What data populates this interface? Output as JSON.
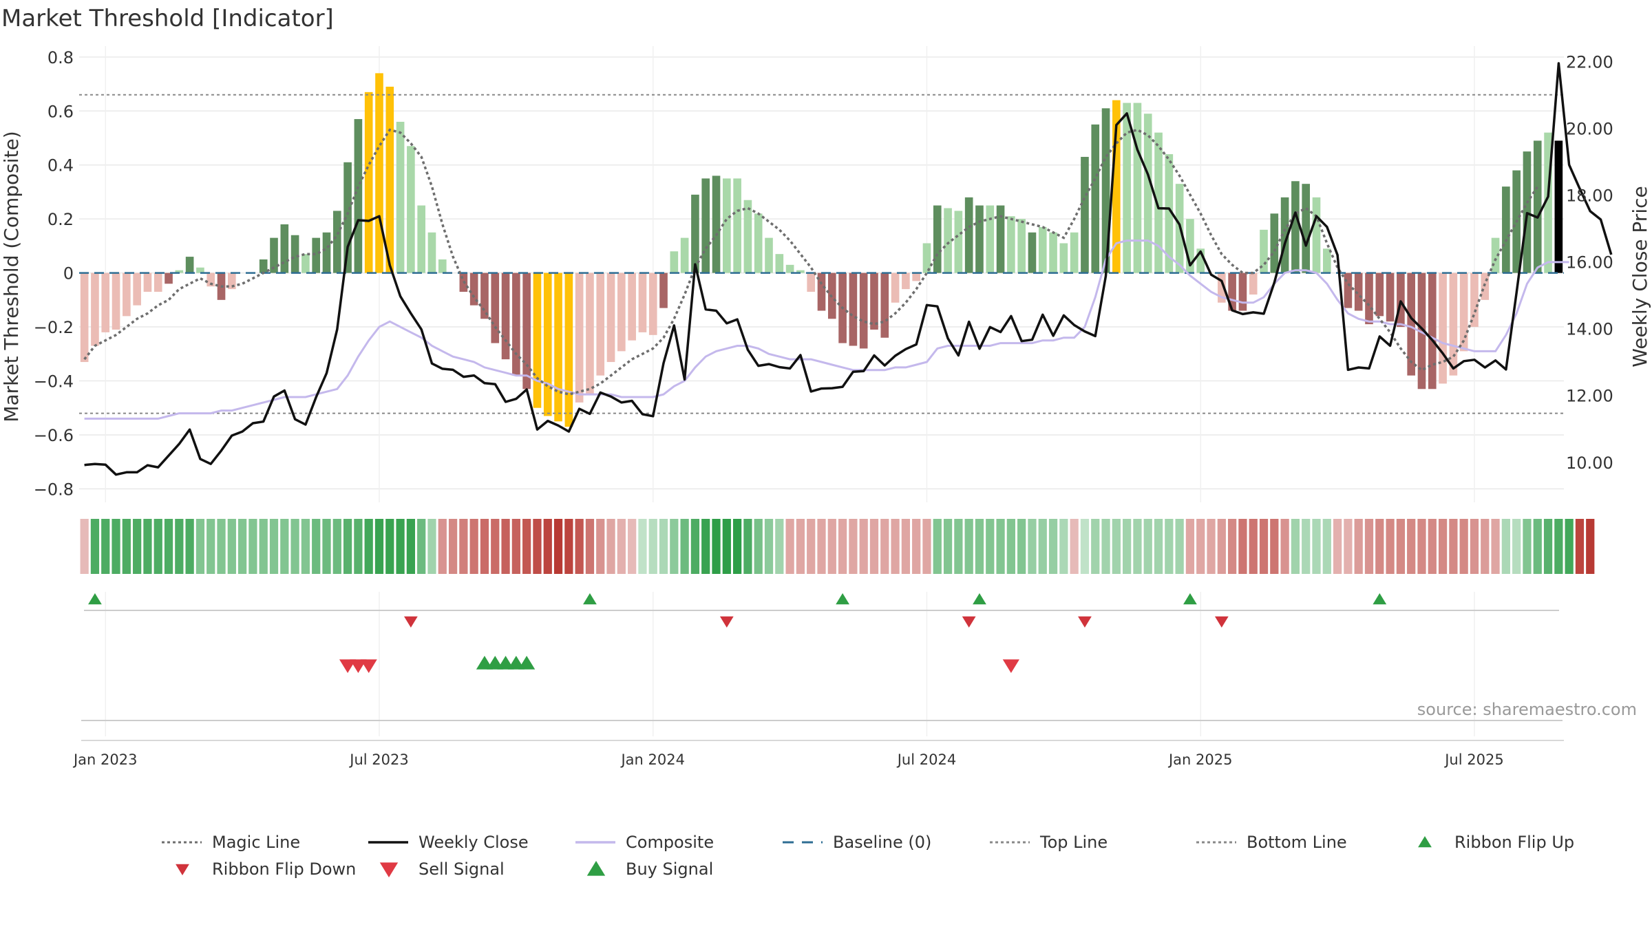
{
  "title": "Market Threshold [Indicator]",
  "source": "source: sharemaestro.com",
  "colors": {
    "grid": "#e9e9e9",
    "dark_green": "#5e8e5e",
    "light_green": "#a9d8a9",
    "dark_red": "#a86565",
    "light_red": "#ebbcb5",
    "gold": "#ffc107",
    "weekly_close": "#111111",
    "composite": "#c4b8ec",
    "magic_line": "#6e6e6e",
    "baseline": "#2e6d93",
    "ref_line": "#888888",
    "flip_up": "#2f9e44",
    "flip_down": "#d0333b",
    "sell": "#e03a44",
    "buy": "#2f9e44"
  },
  "chart_data": {
    "type": "bar",
    "title": "Market Threshold [Indicator]",
    "ylabel": "Market Threshold (Composite)",
    "y2label": "Weekly Close Price",
    "ylim": [
      -0.85,
      0.82
    ],
    "y2lim": [
      8.8,
      22.3
    ],
    "yticks": [
      "0.8",
      "0.6",
      "0.4",
      "0.2",
      "0",
      "−0.2",
      "−0.4",
      "−0.6",
      "−0.8"
    ],
    "ytick_values": [
      0.8,
      0.6,
      0.4,
      0.2,
      0,
      -0.2,
      -0.4,
      -0.6,
      -0.8
    ],
    "y2ticks": [
      "22.00",
      "20.00",
      "18.00",
      "16.00",
      "14.00",
      "12.00",
      "10.00"
    ],
    "y2tick_values": [
      22,
      20,
      18,
      16,
      14,
      12,
      10
    ],
    "xticks": [
      "Jan 2023",
      "Jul 2023",
      "Jan 2024",
      "Jul 2024",
      "Jan 2025",
      "Jul 2025"
    ],
    "xtick_weeks": [
      2,
      28,
      54,
      80,
      106,
      132
    ],
    "top_line": 0.66,
    "bottom_line": -0.52,
    "baseline": 0,
    "bars": [
      -0.33,
      -0.27,
      -0.22,
      -0.21,
      -0.16,
      -0.12,
      -0.07,
      -0.07,
      -0.04,
      0.01,
      0.06,
      0.02,
      -0.05,
      -0.1,
      -0.06,
      0.0,
      0.0,
      0.05,
      0.13,
      0.18,
      0.14,
      0.07,
      0.13,
      0.15,
      0.23,
      0.41,
      0.57,
      0.67,
      0.74,
      0.69,
      0.56,
      0.47,
      0.25,
      0.15,
      0.05,
      0.0,
      -0.07,
      -0.12,
      -0.17,
      -0.26,
      -0.32,
      -0.38,
      -0.43,
      -0.5,
      -0.53,
      -0.55,
      -0.57,
      -0.48,
      -0.45,
      -0.38,
      -0.33,
      -0.29,
      -0.25,
      -0.22,
      -0.23,
      -0.13,
      0.08,
      0.13,
      0.29,
      0.35,
      0.36,
      0.35,
      0.35,
      0.27,
      0.22,
      0.13,
      0.07,
      0.03,
      0.01,
      -0.07,
      -0.14,
      -0.17,
      -0.26,
      -0.27,
      -0.28,
      -0.21,
      -0.24,
      -0.11,
      -0.06,
      -0.03,
      0.11,
      0.25,
      0.24,
      0.23,
      0.28,
      0.25,
      0.25,
      0.25,
      0.21,
      0.2,
      0.15,
      0.17,
      0.15,
      0.11,
      0.15,
      0.43,
      0.55,
      0.61,
      0.64,
      0.63,
      0.63,
      0.59,
      0.52,
      0.44,
      0.33,
      0.2,
      0.09,
      0.0,
      -0.11,
      -0.14,
      -0.14,
      -0.08,
      0.16,
      0.22,
      0.28,
      0.34,
      0.33,
      0.28,
      0.09,
      0.0,
      -0.13,
      -0.14,
      -0.19,
      -0.16,
      -0.18,
      -0.2,
      -0.38,
      -0.43,
      -0.43,
      -0.41,
      -0.38,
      -0.29,
      -0.2,
      -0.1,
      0.13,
      0.32,
      0.38,
      0.45,
      0.49,
      0.52,
      0.49
    ],
    "bar_styles": [
      "lr",
      "lr",
      "lr",
      "lr",
      "lr",
      "lr",
      "lr",
      "lr",
      "dr",
      "lg",
      "dg",
      "lg",
      "lr",
      "dr",
      "lr",
      "lg",
      "lg",
      "dg",
      "dg",
      "dg",
      "dg",
      "lg",
      "dg",
      "dg",
      "dg",
      "dg",
      "dg",
      "go",
      "go",
      "go",
      "lg",
      "lg",
      "lg",
      "lg",
      "lg",
      "lr",
      "dr",
      "dr",
      "dr",
      "dr",
      "dr",
      "dr",
      "dr",
      "go",
      "go",
      "go",
      "go",
      "lr",
      "lr",
      "lr",
      "lr",
      "lr",
      "lr",
      "lr",
      "lr",
      "dr",
      "lg",
      "lg",
      "dg",
      "dg",
      "dg",
      "lg",
      "lg",
      "lg",
      "lg",
      "lg",
      "lg",
      "lg",
      "lg",
      "lr",
      "dr",
      "dr",
      "dr",
      "dr",
      "dr",
      "dr",
      "dr",
      "lr",
      "lr",
      "lr",
      "lg",
      "dg",
      "lg",
      "lg",
      "dg",
      "dg",
      "lg",
      "dg",
      "lg",
      "lg",
      "dg",
      "lg",
      "lg",
      "lg",
      "lg",
      "dg",
      "dg",
      "dg",
      "go",
      "lg",
      "lg",
      "lg",
      "lg",
      "lg",
      "lg",
      "lg",
      "lg",
      "lg",
      "lr",
      "dr",
      "dr",
      "lr",
      "lg",
      "dg",
      "dg",
      "dg",
      "dg",
      "lg",
      "lg",
      "lr",
      "dr",
      "dr",
      "dr",
      "dr",
      "dr",
      "dr",
      "dr",
      "dr",
      "dr",
      "lr",
      "lr",
      "lr",
      "lr",
      "lr",
      "lg",
      "dg",
      "dg",
      "dg",
      "dg",
      "lg"
    ],
    "magic_line": [
      -0.32,
      -0.27,
      -0.25,
      -0.23,
      -0.2,
      -0.17,
      -0.15,
      -0.12,
      -0.1,
      -0.06,
      -0.04,
      -0.02,
      -0.04,
      -0.05,
      -0.05,
      -0.04,
      -0.02,
      0.0,
      0.02,
      0.04,
      0.06,
      0.07,
      0.07,
      0.09,
      0.14,
      0.22,
      0.32,
      0.4,
      0.47,
      0.53,
      0.52,
      0.48,
      0.43,
      0.32,
      0.18,
      0.06,
      -0.03,
      -0.09,
      -0.14,
      -0.2,
      -0.25,
      -0.3,
      -0.34,
      -0.39,
      -0.42,
      -0.44,
      -0.45,
      -0.44,
      -0.43,
      -0.41,
      -0.38,
      -0.35,
      -0.32,
      -0.3,
      -0.28,
      -0.24,
      -0.17,
      -0.08,
      0.02,
      0.09,
      0.14,
      0.2,
      0.23,
      0.24,
      0.22,
      0.19,
      0.16,
      0.12,
      0.07,
      0.02,
      -0.04,
      -0.09,
      -0.13,
      -0.16,
      -0.18,
      -0.19,
      -0.18,
      -0.15,
      -0.11,
      -0.06,
      0.0,
      0.07,
      0.11,
      0.14,
      0.17,
      0.19,
      0.2,
      0.21,
      0.2,
      0.19,
      0.18,
      0.17,
      0.15,
      0.13,
      0.2,
      0.28,
      0.35,
      0.43,
      0.48,
      0.52,
      0.53,
      0.51,
      0.47,
      0.42,
      0.36,
      0.29,
      0.22,
      0.14,
      0.07,
      0.03,
      0.0,
      0.0,
      0.03,
      0.08,
      0.16,
      0.22,
      0.24,
      0.21,
      0.11,
      0.02,
      -0.04,
      -0.08,
      -0.12,
      -0.17,
      -0.22,
      -0.28,
      -0.33,
      -0.36,
      -0.34,
      -0.33,
      -0.31,
      -0.25,
      -0.15,
      -0.04,
      0.05,
      0.12,
      0.19,
      0.26,
      0.32
    ],
    "weekly_close": [
      9.92,
      9.95,
      9.93,
      9.63,
      9.7,
      9.7,
      9.91,
      9.85,
      10.2,
      10.55,
      10.98,
      10.1,
      9.95,
      10.35,
      10.8,
      10.92,
      11.17,
      11.22,
      11.97,
      12.15,
      11.29,
      11.13,
      11.95,
      12.67,
      13.98,
      16.45,
      17.25,
      17.23,
      17.37,
      15.9,
      14.97,
      14.46,
      13.98,
      12.96,
      12.8,
      12.77,
      12.56,
      12.6,
      12.37,
      12.34,
      11.81,
      11.9,
      12.18,
      10.98,
      11.24,
      11.1,
      10.92,
      11.6,
      11.45,
      12.09,
      11.97,
      11.79,
      11.84,
      11.44,
      11.38,
      12.97,
      14.1,
      12.48,
      15.93,
      14.58,
      14.54,
      14.16,
      14.28,
      13.37,
      12.89,
      12.94,
      12.85,
      12.81,
      13.21,
      12.12,
      12.21,
      12.22,
      12.26,
      12.71,
      12.73,
      13.2,
      12.9,
      13.19,
      13.39,
      13.53,
      14.71,
      14.67,
      13.71,
      13.2,
      14.21,
      13.4,
      14.05,
      13.9,
      14.38,
      13.63,
      13.67,
      14.42,
      13.79,
      14.4,
      14.11,
      13.92,
      13.78,
      15.58,
      20.1,
      20.45,
      19.36,
      18.62,
      17.61,
      17.6,
      17.12,
      15.9,
      16.31,
      15.62,
      15.43,
      14.55,
      14.44,
      14.49,
      14.45,
      15.38,
      16.55,
      17.48,
      16.49,
      17.37,
      17.05,
      16.21,
      12.77,
      12.84,
      12.81,
      13.77,
      13.49,
      14.82,
      14.32,
      14.01,
      13.66,
      13.26,
      12.81,
      13.03,
      13.07,
      12.84,
      13.05,
      12.78,
      15.08,
      17.46,
      17.33,
      17.96,
      21.95,
      18.91,
      18.2,
      17.52,
      17.27,
      16.22
    ],
    "composite": [
      -0.54,
      -0.54,
      -0.54,
      -0.54,
      -0.54,
      -0.54,
      -0.54,
      -0.54,
      -0.53,
      -0.52,
      -0.52,
      -0.52,
      -0.52,
      -0.51,
      -0.51,
      -0.5,
      -0.49,
      -0.48,
      -0.47,
      -0.46,
      -0.46,
      -0.46,
      -0.45,
      -0.44,
      -0.43,
      -0.38,
      -0.31,
      -0.25,
      -0.2,
      -0.18,
      -0.2,
      -0.22,
      -0.24,
      -0.27,
      -0.29,
      -0.31,
      -0.32,
      -0.33,
      -0.35,
      -0.36,
      -0.37,
      -0.38,
      -0.38,
      -0.4,
      -0.41,
      -0.43,
      -0.44,
      -0.45,
      -0.45,
      -0.45,
      -0.45,
      -0.46,
      -0.46,
      -0.46,
      -0.46,
      -0.45,
      -0.42,
      -0.4,
      -0.35,
      -0.31,
      -0.29,
      -0.28,
      -0.27,
      -0.27,
      -0.28,
      -0.3,
      -0.31,
      -0.32,
      -0.32,
      -0.32,
      -0.33,
      -0.34,
      -0.35,
      -0.36,
      -0.36,
      -0.36,
      -0.36,
      -0.35,
      -0.35,
      -0.34,
      -0.33,
      -0.28,
      -0.27,
      -0.27,
      -0.27,
      -0.27,
      -0.27,
      -0.26,
      -0.26,
      -0.26,
      -0.26,
      -0.25,
      -0.25,
      -0.24,
      -0.24,
      -0.2,
      -0.09,
      0.05,
      0.11,
      0.12,
      0.12,
      0.12,
      0.1,
      0.06,
      0.03,
      -0.01,
      -0.04,
      -0.07,
      -0.09,
      -0.1,
      -0.11,
      -0.11,
      -0.09,
      -0.04,
      0.0,
      0.01,
      0.01,
      0.0,
      -0.04,
      -0.1,
      -0.15,
      -0.17,
      -0.18,
      -0.18,
      -0.19,
      -0.19,
      -0.2,
      -0.22,
      -0.24,
      -0.26,
      -0.27,
      -0.28,
      -0.29,
      -0.29,
      -0.29,
      -0.23,
      -0.15,
      -0.04,
      0.02,
      0.04,
      0.04,
      0.04
    ],
    "ribbon_alpha": [
      0.35,
      0.85,
      0.85,
      0.85,
      0.85,
      0.85,
      0.85,
      0.85,
      0.85,
      0.85,
      0.85,
      0.6,
      0.6,
      0.6,
      0.6,
      0.6,
      0.6,
      0.6,
      0.6,
      0.6,
      0.6,
      0.6,
      0.7,
      0.7,
      0.7,
      0.8,
      0.8,
      0.9,
      0.95,
      0.95,
      0.95,
      0.95,
      0.7,
      0.45,
      0.55,
      0.6,
      0.65,
      0.7,
      0.75,
      0.75,
      0.8,
      0.8,
      0.85,
      0.9,
      0.95,
      1.0,
      0.95,
      0.85,
      0.7,
      0.55,
      0.45,
      0.4,
      0.35,
      0.3,
      0.35,
      0.4,
      0.55,
      0.7,
      0.85,
      0.95,
      1.0,
      1.0,
      1.0,
      0.85,
      0.65,
      0.55,
      0.45,
      0.45,
      0.45,
      0.45,
      0.45,
      0.45,
      0.45,
      0.45,
      0.45,
      0.45,
      0.45,
      0.45,
      0.45,
      0.45,
      0.45,
      0.6,
      0.6,
      0.6,
      0.6,
      0.6,
      0.6,
      0.6,
      0.6,
      0.6,
      0.5,
      0.5,
      0.5,
      0.4,
      0.35,
      0.3,
      0.45,
      0.45,
      0.45,
      0.45,
      0.45,
      0.45,
      0.45,
      0.45,
      0.45,
      0.45,
      0.45,
      0.45,
      0.5,
      0.6,
      0.7,
      0.7,
      0.7,
      0.7,
      0.55,
      0.45,
      0.4,
      0.4,
      0.4,
      0.4,
      0.4,
      0.5,
      0.55,
      0.6,
      0.6,
      0.6,
      0.6,
      0.6,
      0.6,
      0.6,
      0.6,
      0.6,
      0.55,
      0.5,
      0.45,
      0.4,
      0.35,
      0.6,
      0.7,
      0.8,
      0.85,
      0.9,
      0.95,
      1.0
    ],
    "ribbon_color": [
      "r",
      "g",
      "g",
      "g",
      "g",
      "g",
      "g",
      "g",
      "g",
      "g",
      "g",
      "g",
      "g",
      "g",
      "g",
      "g",
      "g",
      "g",
      "g",
      "g",
      "g",
      "g",
      "g",
      "g",
      "g",
      "g",
      "g",
      "g",
      "g",
      "g",
      "g",
      "g",
      "g",
      "g",
      "r",
      "r",
      "r",
      "r",
      "r",
      "r",
      "r",
      "r",
      "r",
      "r",
      "r",
      "r",
      "r",
      "r",
      "r",
      "r",
      "r",
      "r",
      "r",
      "g",
      "g",
      "g",
      "g",
      "g",
      "g",
      "g",
      "g",
      "g",
      "g",
      "g",
      "g",
      "g",
      "g",
      "r",
      "r",
      "r",
      "r",
      "r",
      "r",
      "r",
      "r",
      "r",
      "r",
      "r",
      "r",
      "r",
      "r",
      "g",
      "g",
      "g",
      "g",
      "g",
      "g",
      "g",
      "g",
      "g",
      "g",
      "g",
      "g",
      "g",
      "r",
      "g",
      "g",
      "g",
      "g",
      "g",
      "g",
      "g",
      "g",
      "g",
      "g",
      "r",
      "r",
      "r",
      "r",
      "r",
      "r",
      "r",
      "r",
      "r",
      "r",
      "g",
      "g",
      "g",
      "g",
      "r",
      "r",
      "r",
      "r",
      "r",
      "r",
      "r",
      "r",
      "r",
      "r",
      "r",
      "r",
      "r",
      "r",
      "r",
      "r",
      "g",
      "g",
      "g",
      "g",
      "g",
      "g",
      "g"
    ],
    "ribbon_flip_up_weeks": [
      1,
      48,
      72,
      85,
      105,
      123
    ],
    "ribbon_flip_down_weeks": [
      31,
      61,
      84,
      95,
      108
    ],
    "sell_signal_weeks": [
      25,
      26,
      27,
      88
    ],
    "buy_signal_weeks": [
      38,
      39,
      40,
      41,
      42
    ],
    "legend": [
      {
        "label": "Magic Line",
        "kind": "dotted",
        "color": "#6e6e6e"
      },
      {
        "label": "Weekly Close",
        "kind": "solid",
        "color": "#111111"
      },
      {
        "label": "Composite",
        "kind": "solid",
        "color": "#c4b8ec"
      },
      {
        "label": "Baseline (0)",
        "kind": "dashed",
        "color": "#2e6d93"
      },
      {
        "label": "Top Line",
        "kind": "dotted",
        "color": "#888888"
      },
      {
        "label": "Bottom Line",
        "kind": "dotted",
        "color": "#888888"
      },
      {
        "label": "Ribbon Flip Up",
        "kind": "tri-up",
        "color": "#2f9e44"
      },
      {
        "label": "Ribbon Flip Down",
        "kind": "tri-down",
        "color": "#d0333b"
      },
      {
        "label": "Sell Signal",
        "kind": "tri-down-big",
        "color": "#e03a44"
      },
      {
        "label": "Buy Signal",
        "kind": "tri-up-big",
        "color": "#2f9e44"
      }
    ]
  }
}
